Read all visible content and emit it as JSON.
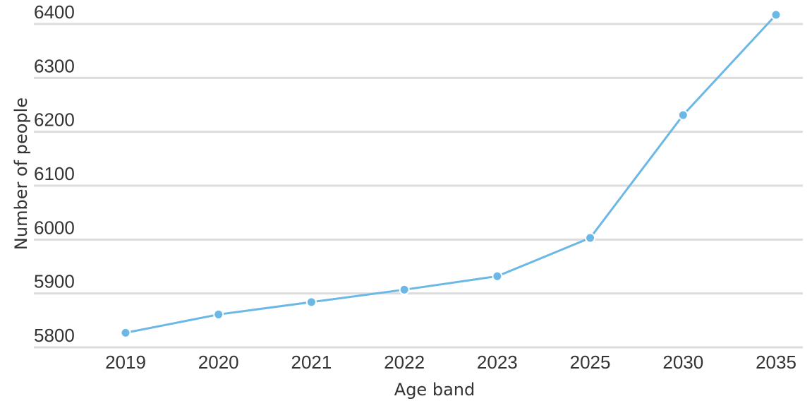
{
  "chart_data": {
    "type": "line",
    "categories": [
      "2019",
      "2020",
      "2021",
      "2022",
      "2023",
      "2025",
      "2030",
      "2035"
    ],
    "series": [
      {
        "values": [
          5827,
          5861,
          5884,
          5907,
          5932,
          6003,
          6231,
          6417
        ],
        "color": "#6bb8e6"
      }
    ],
    "title": "",
    "xlabel": "Age band",
    "ylabel": "Number of people",
    "ylim": [
      5800,
      6400
    ],
    "yticks": [
      5800,
      5900,
      6000,
      6100,
      6200,
      6300,
      6400
    ],
    "grid": true,
    "legend": "none"
  }
}
